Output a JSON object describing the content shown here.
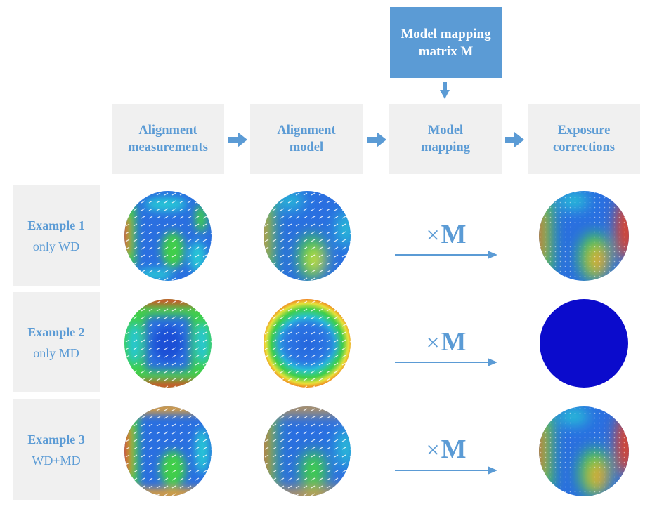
{
  "mapping_matrix": {
    "line1": "Model mapping",
    "line2": "matrix M"
  },
  "stages": [
    {
      "line1": "Alignment",
      "line2": "measurements"
    },
    {
      "line1": "Alignment",
      "line2": "model"
    },
    {
      "line1": "Model",
      "line2": "mapping"
    },
    {
      "line1": "Exposure",
      "line2": "corrections"
    }
  ],
  "examples": [
    {
      "title": "Example 1",
      "subtitle": "only WD",
      "operator_symbol": "×",
      "operator_matrix": "M"
    },
    {
      "title": "Example 2",
      "subtitle": "only MD",
      "operator_symbol": "×",
      "operator_matrix": "M"
    },
    {
      "title": "Example 3",
      "subtitle": "WD+MD",
      "operator_symbol": "×",
      "operator_matrix": "M"
    }
  ],
  "colors": {
    "accent": "#5b9bd5",
    "box_fill": "#f0f0f0",
    "solid_map": "#0b0bcc"
  }
}
